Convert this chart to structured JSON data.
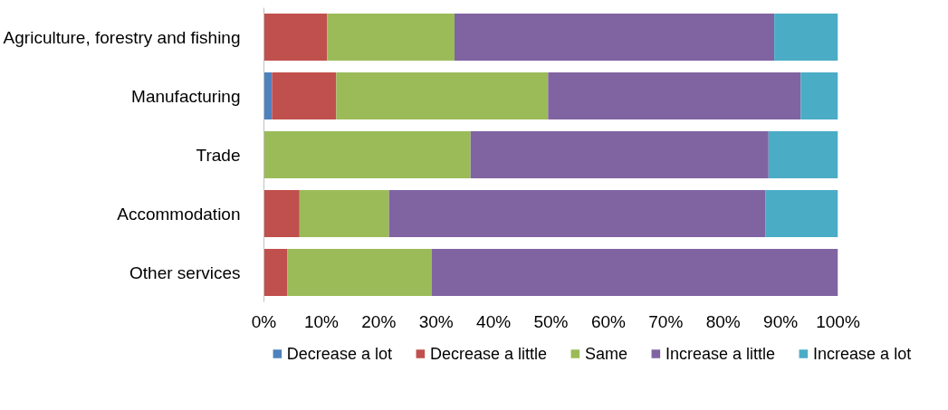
{
  "chart_data": {
    "type": "bar",
    "orientation": "horizontal",
    "stacked": true,
    "categories": [
      "Agriculture, forestry and fishing",
      "Manufacturing",
      "Trade",
      "Accommodation",
      "Other services"
    ],
    "series": [
      {
        "name": "Decrease a lot",
        "color": "#4f81bd",
        "values": [
          0,
          1.4,
          0,
          0,
          0
        ]
      },
      {
        "name": "Decrease a little",
        "color": "#c0504d",
        "values": [
          11,
          11.2,
          0,
          6.2,
          4.1
        ]
      },
      {
        "name": "Same",
        "color": "#9bbb59",
        "values": [
          22.2,
          36.9,
          36,
          15.6,
          25.1
        ]
      },
      {
        "name": "Increase a little",
        "color": "#8064a2",
        "values": [
          55.7,
          44,
          51.9,
          65.6,
          70.8
        ]
      },
      {
        "name": "Increase a lot",
        "color": "#4bacc6",
        "values": [
          11.1,
          6.5,
          12.1,
          12.6,
          0
        ]
      }
    ],
    "xlim": [
      0,
      100
    ],
    "xticks": [
      {
        "value": 0,
        "label": "0%"
      },
      {
        "value": 10,
        "label": "10%"
      },
      {
        "value": 20,
        "label": "20%"
      },
      {
        "value": 30,
        "label": "30%"
      },
      {
        "value": 40,
        "label": "40%"
      },
      {
        "value": 50,
        "label": "50%"
      },
      {
        "value": 60,
        "label": "60%"
      },
      {
        "value": 70,
        "label": "70%"
      },
      {
        "value": 80,
        "label": "80%"
      },
      {
        "value": 90,
        "label": "90%"
      },
      {
        "value": 100,
        "label": "100%"
      }
    ],
    "grid": false,
    "legend": "bottom"
  }
}
